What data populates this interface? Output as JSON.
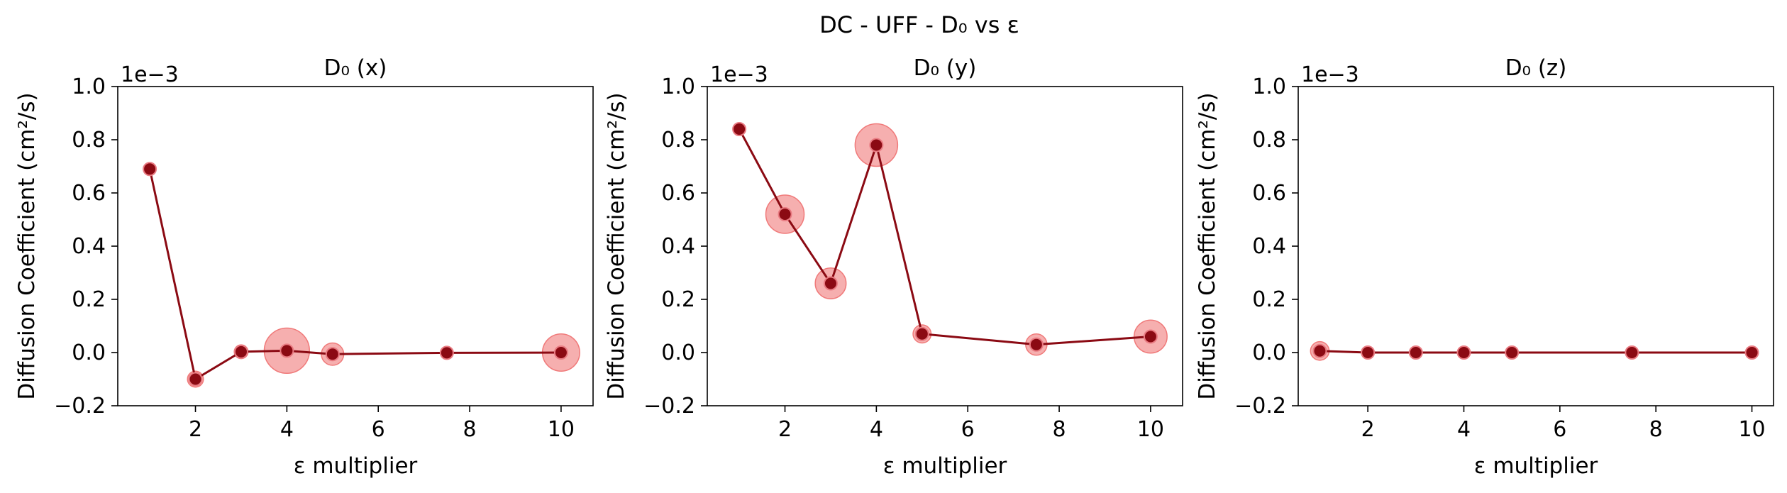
{
  "figure": {
    "title": "DC - UFF - D₀ vs ε"
  },
  "colors": {
    "line": "#8b0a13",
    "marker": "#8b0a13",
    "error_fill": "#f07a7a"
  },
  "chart_data": [
    {
      "type": "scatter",
      "title": "D₀ (x)",
      "xlabel": "ε multiplier",
      "ylabel": "Diffusion Coefficient (cm²/s)",
      "y_offset_label": "1e−3",
      "x_ticks": [
        "2",
        "4",
        "6",
        "8",
        "10"
      ],
      "y_ticks": [
        "−0.2",
        "0.0",
        "0.2",
        "0.4",
        "0.6",
        "0.8",
        "1.0"
      ],
      "xlim": [
        0.3,
        10.7
      ],
      "ylim": [
        -0.2,
        1.0
      ],
      "y_scale": 0.001,
      "series": [
        {
          "x": [
            1,
            2,
            3,
            4,
            5,
            7.5,
            10
          ],
          "y": [
            0.69,
            -0.1,
            0.003,
            0.007,
            -0.006,
            -0.001,
            0.0
          ],
          "uncertainty": [
            0.012,
            0.03,
            0.026,
            0.085,
            0.042,
            0.018,
            0.07
          ]
        }
      ]
    },
    {
      "type": "scatter",
      "title": "D₀ (y)",
      "xlabel": "ε multiplier",
      "ylabel": "Diffusion Coefficient (cm²/s)",
      "y_offset_label": "1e−3",
      "x_ticks": [
        "2",
        "4",
        "6",
        "8",
        "10"
      ],
      "y_ticks": [
        "−0.2",
        "0.0",
        "0.2",
        "0.4",
        "0.6",
        "0.8",
        "1.0"
      ],
      "xlim": [
        0.3,
        10.7
      ],
      "ylim": [
        -0.2,
        1.0
      ],
      "y_scale": 0.001,
      "series": [
        {
          "x": [
            1,
            2,
            3,
            4,
            5,
            7.5,
            10
          ],
          "y": [
            0.84,
            0.52,
            0.26,
            0.78,
            0.07,
            0.03,
            0.06
          ],
          "uncertainty": [
            0.01,
            0.072,
            0.058,
            0.08,
            0.034,
            0.04,
            0.062
          ]
        }
      ]
    },
    {
      "type": "scatter",
      "title": "D₀ (z)",
      "xlabel": "ε multiplier",
      "ylabel": "Diffusion Coefficient (cm²/s)",
      "y_offset_label": "1e−3",
      "x_ticks": [
        "2",
        "4",
        "6",
        "8",
        "10"
      ],
      "y_ticks": [
        "−0.2",
        "0.0",
        "0.2",
        "0.4",
        "0.6",
        "0.8",
        "1.0"
      ],
      "xlim": [
        0.55,
        10.45
      ],
      "ylim": [
        -0.2,
        1.0
      ],
      "y_scale": 0.001,
      "series": [
        {
          "x": [
            1,
            2,
            3,
            4,
            5,
            7.5,
            10
          ],
          "y": [
            0.006,
            0.0,
            0.0,
            0.0,
            0.0,
            0.0,
            0.0
          ],
          "uncertainty": [
            0.035,
            0.02,
            0.02,
            0.02,
            0.02,
            0.02,
            0.02
          ]
        }
      ]
    }
  ]
}
